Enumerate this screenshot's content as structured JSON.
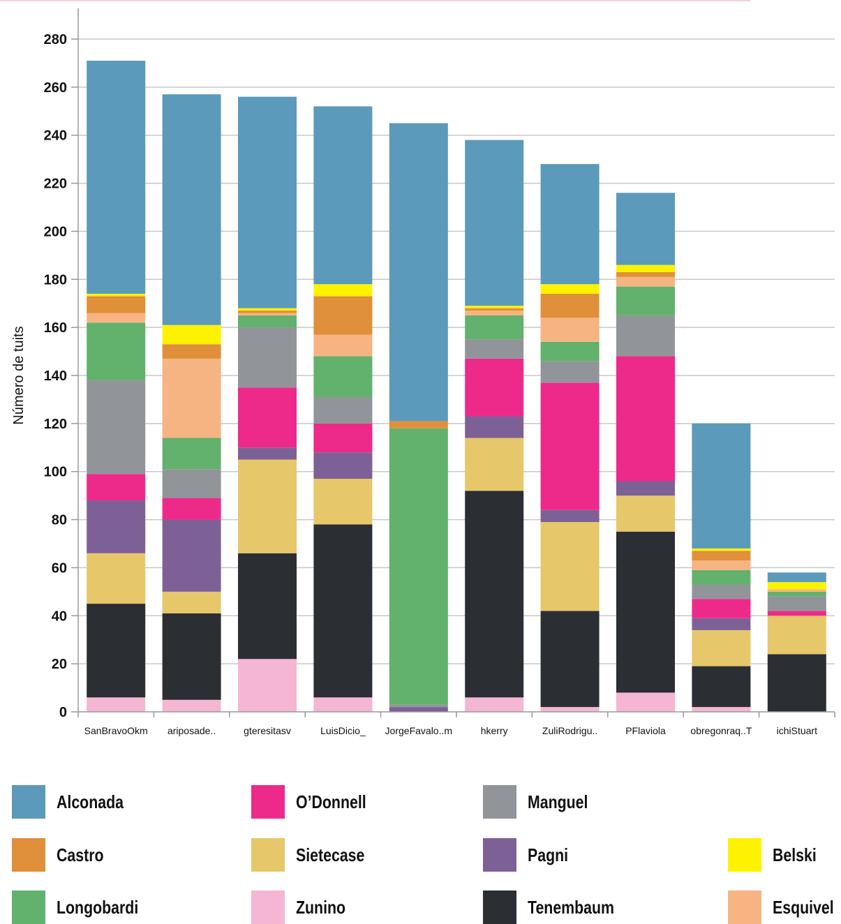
{
  "chart_data": {
    "type": "bar",
    "stacked": true,
    "title": "",
    "xlabel": "",
    "ylabel": "Número de tuits",
    "ylim": [
      0,
      280
    ],
    "yticks": [
      0,
      20,
      40,
      60,
      80,
      100,
      120,
      140,
      160,
      180,
      200,
      220,
      240,
      260,
      280
    ],
    "grid": true,
    "legend_position": "bottom",
    "categories": [
      "SanBravoOkm",
      "ariposade..",
      "gteresitasv",
      "LuisDicio_",
      "JorgeFavalo..m",
      "hkerry",
      "ZuliRodrigu..",
      "PFlaviola",
      "obregonraq..T",
      "ichiStuart"
    ],
    "series": [
      {
        "name": "Zunino",
        "color": "#f4b6d2",
        "values": [
          6,
          5,
          22,
          6,
          0,
          6,
          2,
          8,
          2,
          0
        ]
      },
      {
        "name": "Tenembaum",
        "color": "#2b2e33",
        "values": [
          39,
          36,
          44,
          72,
          0,
          86,
          40,
          67,
          17,
          24
        ]
      },
      {
        "name": "Sietecase",
        "color": "#e6c76a",
        "values": [
          21,
          9,
          39,
          19,
          0,
          22,
          37,
          15,
          15,
          16
        ]
      },
      {
        "name": "Pagni",
        "color": "#7d6196",
        "values": [
          22,
          30,
          5,
          11,
          2,
          9,
          5,
          6,
          5,
          0
        ]
      },
      {
        "name": "O’Donnell",
        "color": "#ed2a8a",
        "values": [
          11,
          9,
          25,
          12,
          0,
          24,
          53,
          52,
          8,
          2
        ]
      },
      {
        "name": "Manguel",
        "color": "#919599",
        "values": [
          39,
          12,
          25,
          11,
          1,
          8,
          9,
          17,
          6,
          6
        ]
      },
      {
        "name": "Longobardi",
        "color": "#62b16d",
        "values": [
          24,
          13,
          5,
          17,
          115,
          10,
          8,
          12,
          6,
          2
        ]
      },
      {
        "name": "Esquivel",
        "color": "#f6b482",
        "values": [
          4,
          33,
          1,
          9,
          0,
          2,
          10,
          4,
          4,
          1
        ]
      },
      {
        "name": "Castro",
        "color": "#e08f3a",
        "values": [
          7,
          6,
          1,
          16,
          3,
          1,
          10,
          2,
          4,
          0
        ]
      },
      {
        "name": "Belski",
        "color": "#fff200",
        "values": [
          1,
          8,
          1,
          5,
          0,
          1,
          4,
          3,
          1,
          3
        ]
      },
      {
        "name": "Alconada",
        "color": "#5b9abb",
        "values": [
          97,
          96,
          88,
          74,
          124,
          69,
          50,
          30,
          52,
          4
        ]
      }
    ]
  },
  "legend": {
    "rows": [
      [
        "Alconada",
        "O’Donnell",
        "Manguel",
        ""
      ],
      [
        "Castro",
        "Sietecase",
        "Pagni",
        "Belski"
      ],
      [
        "Longobardi",
        "Zunino",
        "Tenembaum",
        "Esquivel"
      ]
    ]
  },
  "colors": {
    "grid": "#c8c8c8",
    "axis": "#999999",
    "top_rule": "#f3d1dc"
  }
}
